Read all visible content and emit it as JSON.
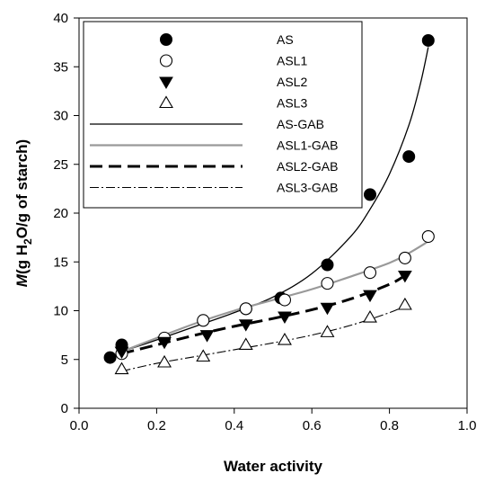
{
  "chart_data": {
    "type": "scatter",
    "xlabel": "Water activity",
    "ylabel_parts": [
      "M",
      "(g H",
      "2",
      "O/g of starch)"
    ],
    "xlim": [
      0.0,
      1.0
    ],
    "ylim": [
      0,
      40
    ],
    "xticks": [
      "0.0",
      "0.2",
      "0.4",
      "0.6",
      "0.8",
      "1.0"
    ],
    "yticks": [
      "0",
      "5",
      "10",
      "15",
      "20",
      "25",
      "30",
      "35",
      "40"
    ],
    "grid": false,
    "legend_placement": "top-left",
    "series": [
      {
        "name": "AS",
        "kind": "points",
        "marker": "filled-circle",
        "x": [
          0.08,
          0.11,
          0.43,
          0.52,
          0.64,
          0.75,
          0.85,
          0.9
        ],
        "y": [
          5.2,
          6.5,
          10.2,
          11.3,
          14.7,
          21.9,
          25.8,
          37.7
        ]
      },
      {
        "name": "ASL1",
        "kind": "points",
        "marker": "open-circle",
        "x": [
          0.11,
          0.22,
          0.32,
          0.43,
          0.53,
          0.64,
          0.75,
          0.84,
          0.9
        ],
        "y": [
          5.6,
          7.2,
          9.0,
          10.2,
          11.1,
          12.8,
          13.9,
          15.4,
          17.6
        ]
      },
      {
        "name": "ASL2",
        "kind": "points",
        "marker": "filled-triangle-down",
        "x": [
          0.11,
          0.22,
          0.33,
          0.43,
          0.53,
          0.64,
          0.75,
          0.84
        ],
        "y": [
          5.8,
          6.8,
          7.5,
          8.6,
          9.4,
          10.3,
          11.6,
          13.6
        ]
      },
      {
        "name": "ASL3",
        "kind": "points",
        "marker": "open-triangle-up",
        "x": [
          0.11,
          0.22,
          0.32,
          0.43,
          0.53,
          0.64,
          0.75,
          0.84
        ],
        "y": [
          4.0,
          4.7,
          5.3,
          6.5,
          7.0,
          7.8,
          9.3,
          10.6
        ]
      },
      {
        "name": "AS-GAB",
        "kind": "line",
        "style": "solid-black",
        "x": [
          0.11,
          0.2,
          0.3,
          0.4,
          0.5,
          0.6,
          0.7,
          0.75,
          0.8,
          0.85,
          0.88,
          0.9
        ],
        "y": [
          5.8,
          7.0,
          8.4,
          9.8,
          11.4,
          13.8,
          17.6,
          20.4,
          24.0,
          29.0,
          33.3,
          37.0
        ]
      },
      {
        "name": "ASL1-GAB",
        "kind": "line",
        "style": "solid-gray",
        "x": [
          0.11,
          0.2,
          0.3,
          0.4,
          0.5,
          0.6,
          0.7,
          0.8,
          0.85,
          0.9
        ],
        "y": [
          5.8,
          7.2,
          8.7,
          10.0,
          11.1,
          12.2,
          13.5,
          14.9,
          15.9,
          17.1
        ]
      },
      {
        "name": "ASL2-GAB",
        "kind": "line",
        "style": "dashed-black",
        "x": [
          0.11,
          0.2,
          0.3,
          0.4,
          0.5,
          0.6,
          0.7,
          0.8,
          0.84
        ],
        "y": [
          5.6,
          6.5,
          7.5,
          8.4,
          9.2,
          10.1,
          11.2,
          12.7,
          13.6
        ]
      },
      {
        "name": "ASL3-GAB",
        "kind": "line",
        "style": "dashdot-black",
        "x": [
          0.11,
          0.2,
          0.3,
          0.4,
          0.5,
          0.6,
          0.7,
          0.8,
          0.84
        ],
        "y": [
          3.8,
          4.6,
          5.3,
          6.0,
          6.7,
          7.5,
          8.5,
          9.8,
          10.5
        ]
      }
    ]
  },
  "colors": {
    "line": "#000000",
    "gray_line": "#999999",
    "marker_fill": "#000000",
    "open_fill": "#ffffff"
  }
}
